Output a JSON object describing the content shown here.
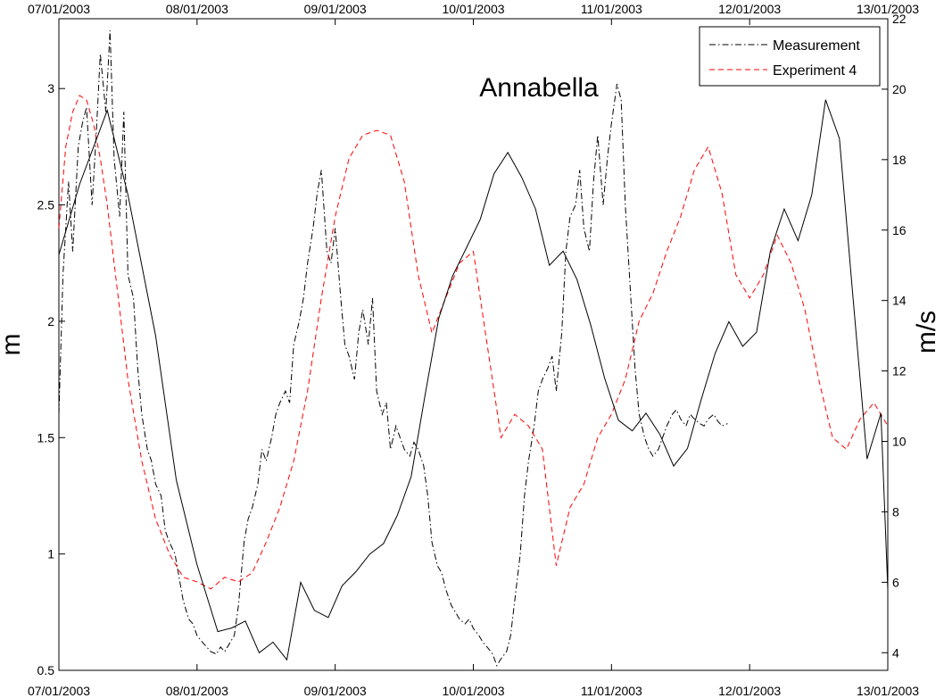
{
  "chart_data": {
    "type": "line",
    "title": "Annabella",
    "ylabel_left": "m",
    "ylabel_right": "m/s",
    "x_ticks": [
      "07/01/2003",
      "08/01/2003",
      "09/01/2003",
      "10/01/2003",
      "11/01/2003",
      "12/01/2003",
      "13/01/2003"
    ],
    "xlim": [
      0,
      6
    ],
    "left_ylim": [
      0.5,
      3.3
    ],
    "left_yticks": [
      "0.5",
      "1",
      "1.5",
      "2",
      "2.5",
      "3"
    ],
    "right_ylim": [
      3.5,
      22
    ],
    "right_yticks": [
      "4",
      "6",
      "8",
      "10",
      "12",
      "14",
      "16",
      "18",
      "20",
      "22"
    ],
    "legend": {
      "position": "top-right",
      "entries": [
        "Measurement",
        "Experiment 4"
      ]
    },
    "grid": false,
    "series": [
      {
        "name": "Measurement",
        "axis": "left",
        "color": "#000000",
        "style": "dash-dot",
        "x": [
          0.0,
          0.03,
          0.07,
          0.1,
          0.14,
          0.17,
          0.2,
          0.24,
          0.27,
          0.3,
          0.34,
          0.37,
          0.4,
          0.44,
          0.47,
          0.5,
          0.54,
          0.57,
          0.6,
          0.64,
          0.67,
          0.7,
          0.74,
          0.77,
          0.8,
          0.84,
          0.87,
          0.9,
          0.94,
          0.97,
          1.0,
          1.04,
          1.07,
          1.1,
          1.14,
          1.17,
          1.2,
          1.24,
          1.27,
          1.3,
          1.34,
          1.37,
          1.4,
          1.44,
          1.47,
          1.5,
          1.54,
          1.57,
          1.6,
          1.64,
          1.67,
          1.7,
          1.74,
          1.77,
          1.8,
          1.84,
          1.87,
          1.9,
          1.94,
          1.97,
          2.0,
          2.04,
          2.07,
          2.1,
          2.14,
          2.17,
          2.2,
          2.24,
          2.27,
          2.3,
          2.34,
          2.37,
          2.4,
          2.44,
          2.47,
          2.5,
          2.54,
          2.57,
          2.6,
          2.64,
          2.67,
          2.7,
          2.74,
          2.77,
          2.8,
          2.84,
          2.87,
          2.9,
          2.94,
          2.97,
          3.0,
          3.04,
          3.07,
          3.1,
          3.14,
          3.17,
          3.2,
          3.24,
          3.27,
          3.3,
          3.34,
          3.37,
          3.4,
          3.44,
          3.47,
          3.5,
          3.54,
          3.57,
          3.6,
          3.64,
          3.67,
          3.7,
          3.74,
          3.77,
          3.8,
          3.84,
          3.87,
          3.9,
          3.94,
          3.97,
          4.0,
          4.04,
          4.07,
          4.1,
          4.14,
          4.17,
          4.2,
          4.24,
          4.27,
          4.3,
          4.34,
          4.37,
          4.4,
          4.44,
          4.47,
          4.5,
          4.54,
          4.57,
          4.6,
          4.64,
          4.67,
          4.7,
          4.74,
          4.77,
          4.8,
          4.84
        ],
        "values": [
          1.6,
          2.2,
          2.6,
          2.3,
          2.75,
          2.85,
          2.92,
          2.5,
          2.8,
          3.15,
          2.9,
          3.25,
          2.7,
          2.45,
          2.9,
          2.2,
          2.1,
          1.8,
          1.6,
          1.45,
          1.4,
          1.3,
          1.25,
          1.1,
          1.05,
          1.0,
          0.9,
          0.8,
          0.72,
          0.7,
          0.65,
          0.62,
          0.6,
          0.58,
          0.57,
          0.6,
          0.58,
          0.62,
          0.65,
          0.78,
          1.05,
          1.15,
          1.2,
          1.3,
          1.45,
          1.4,
          1.5,
          1.6,
          1.65,
          1.7,
          1.65,
          1.9,
          2.0,
          2.1,
          2.25,
          2.4,
          2.55,
          2.65,
          2.3,
          2.25,
          2.4,
          2.1,
          1.9,
          1.85,
          1.75,
          1.95,
          2.05,
          1.9,
          2.1,
          1.7,
          1.6,
          1.65,
          1.45,
          1.55,
          1.5,
          1.45,
          1.42,
          1.48,
          1.45,
          1.38,
          1.25,
          1.05,
          0.95,
          0.92,
          0.85,
          0.78,
          0.75,
          0.72,
          0.7,
          0.72,
          0.68,
          0.65,
          0.62,
          0.6,
          0.57,
          0.52,
          0.55,
          0.58,
          0.65,
          0.8,
          1.0,
          1.25,
          1.4,
          1.55,
          1.7,
          1.75,
          1.8,
          1.85,
          1.7,
          1.95,
          2.3,
          2.45,
          2.5,
          2.65,
          2.4,
          2.3,
          2.6,
          2.8,
          2.5,
          2.7,
          2.85,
          3.02,
          2.95,
          2.5,
          2.1,
          1.8,
          1.6,
          1.5,
          1.45,
          1.42,
          1.45,
          1.5,
          1.55,
          1.6,
          1.62,
          1.58,
          1.55,
          1.6,
          1.58,
          1.56,
          1.55,
          1.58,
          1.6,
          1.57,
          1.55,
          1.56
        ]
      },
      {
        "name": "Experiment 4",
        "axis": "left",
        "color": "#ff0000",
        "style": "dashed",
        "x": [
          0.0,
          0.05,
          0.1,
          0.15,
          0.2,
          0.25,
          0.3,
          0.35,
          0.4,
          0.45,
          0.5,
          0.6,
          0.7,
          0.8,
          0.9,
          1.0,
          1.1,
          1.2,
          1.3,
          1.4,
          1.5,
          1.6,
          1.7,
          1.8,
          1.9,
          2.0,
          2.1,
          2.2,
          2.3,
          2.4,
          2.5,
          2.6,
          2.7,
          2.8,
          2.9,
          3.0,
          3.1,
          3.2,
          3.3,
          3.4,
          3.5,
          3.6,
          3.7,
          3.8,
          3.9,
          4.0,
          4.1,
          4.2,
          4.3,
          4.4,
          4.5,
          4.6,
          4.7,
          4.8,
          4.9,
          5.0,
          5.1,
          5.2,
          5.3,
          5.4,
          5.5,
          5.6,
          5.7,
          5.8,
          5.9,
          6.0
        ],
        "values": [
          2.4,
          2.75,
          2.9,
          2.97,
          2.95,
          2.85,
          2.7,
          2.5,
          2.25,
          2.0,
          1.75,
          1.4,
          1.15,
          1.0,
          0.9,
          0.88,
          0.85,
          0.9,
          0.88,
          0.92,
          1.05,
          1.2,
          1.4,
          1.7,
          2.1,
          2.45,
          2.7,
          2.8,
          2.82,
          2.8,
          2.6,
          2.2,
          1.95,
          2.1,
          2.25,
          2.3,
          1.9,
          1.5,
          1.6,
          1.55,
          1.45,
          0.95,
          1.2,
          1.3,
          1.5,
          1.6,
          1.75,
          2.0,
          2.12,
          2.3,
          2.45,
          2.65,
          2.75,
          2.55,
          2.2,
          2.1,
          2.2,
          2.37,
          2.25,
          2.05,
          1.75,
          1.5,
          1.45,
          1.58,
          1.65,
          1.55
        ]
      },
      {
        "name": "",
        "axis": "right",
        "color": "#000000",
        "style": "solid",
        "x": [
          0.0,
          0.15,
          0.35,
          0.5,
          0.7,
          0.85,
          1.0,
          1.15,
          1.25,
          1.35,
          1.45,
          1.55,
          1.65,
          1.75,
          1.85,
          1.95,
          2.05,
          2.15,
          2.25,
          2.35,
          2.45,
          2.55,
          2.65,
          2.75,
          2.85,
          2.95,
          3.05,
          3.15,
          3.25,
          3.35,
          3.45,
          3.55,
          3.65,
          3.75,
          3.85,
          3.95,
          4.05,
          4.15,
          4.25,
          4.35,
          4.45,
          4.55,
          4.65,
          4.75,
          4.85,
          4.95,
          5.05,
          5.15,
          5.25,
          5.35,
          5.45,
          5.55,
          5.65,
          5.75,
          5.85,
          5.95,
          6.0
        ],
        "values": [
          15.3,
          17.3,
          19.4,
          17.0,
          13.0,
          8.9,
          6.5,
          4.6,
          4.7,
          4.9,
          4.0,
          4.3,
          3.8,
          6.0,
          5.2,
          5.0,
          5.9,
          6.3,
          6.8,
          7.1,
          7.9,
          9.0,
          11.3,
          13.5,
          14.7,
          15.5,
          16.3,
          17.6,
          18.2,
          17.5,
          16.6,
          15.0,
          15.4,
          14.6,
          13.3,
          11.8,
          10.6,
          10.3,
          10.8,
          10.2,
          9.3,
          9.8,
          11.2,
          12.5,
          13.4,
          12.7,
          13.1,
          15.4,
          16.6,
          15.7,
          17.0,
          19.7,
          18.6,
          14.0,
          9.5,
          10.8,
          5.8
        ]
      }
    ]
  }
}
